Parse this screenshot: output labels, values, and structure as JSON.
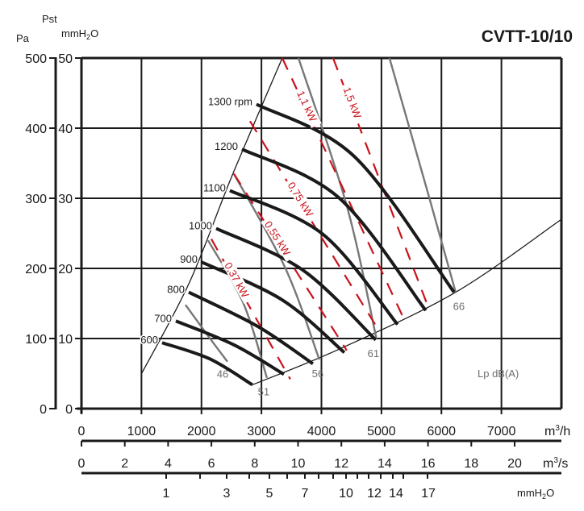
{
  "chart_data": {
    "type": "line",
    "title": "CVTT-10/10",
    "y_axis_left": {
      "label": "Pa",
      "ticks": [
        0,
        100,
        200,
        300,
        400,
        500
      ],
      "range": [
        0,
        500
      ]
    },
    "y_axis_right": {
      "label_top": "Pst",
      "label": "mmH2O",
      "ticks": [
        0,
        10,
        20,
        30,
        40,
        50
      ],
      "range": [
        0,
        50
      ]
    },
    "x_axis_primary": {
      "unit": "m3/h",
      "ticks": [
        0,
        1000,
        2000,
        3000,
        4000,
        5000,
        6000,
        7000
      ],
      "range": [
        0,
        8000
      ]
    },
    "x_axis_secondary": {
      "unit": "m3/s",
      "ticks": [
        0,
        2,
        4,
        6,
        8,
        10,
        12,
        14,
        16,
        18,
        20
      ]
    },
    "x_axis_dynamic": {
      "unit": "mmH2O",
      "labeled_ticks": [
        "1",
        "3",
        "5",
        "7",
        "10",
        "12",
        "14",
        "17"
      ]
    },
    "grid": true,
    "rpm_series": [
      {
        "name": "600",
        "label": "600",
        "points": [
          [
            1344,
            94
          ],
          [
            2137,
            71
          ],
          [
            2849,
            34
          ]
        ]
      },
      {
        "name": "700",
        "label": "700",
        "points": [
          [
            1573,
            125
          ],
          [
            2540,
            91
          ],
          [
            3374,
            49
          ]
        ]
      },
      {
        "name": "800",
        "label": "800",
        "points": [
          [
            1788,
            166
          ],
          [
            2944,
            117
          ],
          [
            3858,
            64
          ]
        ]
      },
      {
        "name": "900",
        "label": "900",
        "points": [
          [
            2003,
            209
          ],
          [
            3347,
            155
          ],
          [
            4382,
            80
          ]
        ]
      },
      {
        "name": "1000",
        "label": "1000",
        "points": [
          [
            2245,
            257
          ],
          [
            3683,
            198
          ],
          [
            4906,
            98
          ]
        ]
      },
      {
        "name": "1100",
        "label": "1100",
        "points": [
          [
            2473,
            311
          ],
          [
            4019,
            249
          ],
          [
            5269,
            120
          ]
        ]
      },
      {
        "name": "1200",
        "label": "1200",
        "points": [
          [
            2675,
            370
          ],
          [
            4288,
            301
          ],
          [
            5739,
            140
          ]
        ]
      },
      {
        "name": "1300",
        "label": "1300 rpm",
        "points": [
          [
            2917,
            434
          ],
          [
            4556,
            359
          ],
          [
            6210,
            166
          ]
        ]
      }
    ],
    "noise_series": [
      {
        "name": "46",
        "label": "46",
        "points": [
          [
            1734,
            148
          ],
          [
            2100,
            105
          ],
          [
            2433,
            67
          ]
        ]
      },
      {
        "name": "51",
        "label": "51",
        "points": [
          [
            2110,
            240
          ],
          [
            2700,
            150
          ],
          [
            3091,
            44
          ]
        ]
      },
      {
        "name": "56",
        "label": "56",
        "points": [
          [
            2540,
            335
          ],
          [
            3400,
            200
          ],
          [
            3965,
            70
          ]
        ]
      },
      {
        "name": "61",
        "label": "61",
        "points": [
          [
            3617,
            500
          ],
          [
            4420,
            290
          ],
          [
            4919,
            99
          ]
        ]
      },
      {
        "name": "66",
        "label": "66",
        "points": [
          [
            5134,
            500
          ],
          [
            5800,
            300
          ],
          [
            6237,
            166
          ]
        ]
      }
    ],
    "power_series": [
      {
        "name": "0.37 kW",
        "label": "0,37 kW",
        "points": [
          [
            2164,
            242
          ],
          [
            3481,
            42
          ]
        ]
      },
      {
        "name": "0.55 kW",
        "label": "0,55 kW",
        "points": [
          [
            2540,
            335
          ],
          [
            4422,
            83
          ]
        ]
      },
      {
        "name": "0.75 kW",
        "label": "0,75 kW",
        "points": [
          [
            2809,
            410
          ],
          [
            4960,
            111
          ]
        ]
      },
      {
        "name": "1.1 kW",
        "label": "1,1 kW",
        "points": [
          [
            3347,
            500
          ],
          [
            5390,
            125
          ]
        ]
      },
      {
        "name": "1.5 kW",
        "label": "1,5 kW",
        "points": [
          [
            4194,
            500
          ],
          [
            5793,
            142
          ]
        ]
      }
    ],
    "boundary_left": [
      [
        1008,
        51
      ],
      [
        1800,
        180
      ],
      [
        2500,
        330
      ],
      [
        3347,
        500
      ]
    ],
    "boundary_bottom": [
      [
        2849,
        34
      ],
      [
        4300,
        85
      ],
      [
        6237,
        166
      ],
      [
        8000,
        270
      ]
    ],
    "annotation": "Lp dB(A)",
    "colors": {
      "rpm": "#1a1a1a",
      "noise": "#777777",
      "power": "#c8141c",
      "grid": "#1a1a1a"
    }
  }
}
